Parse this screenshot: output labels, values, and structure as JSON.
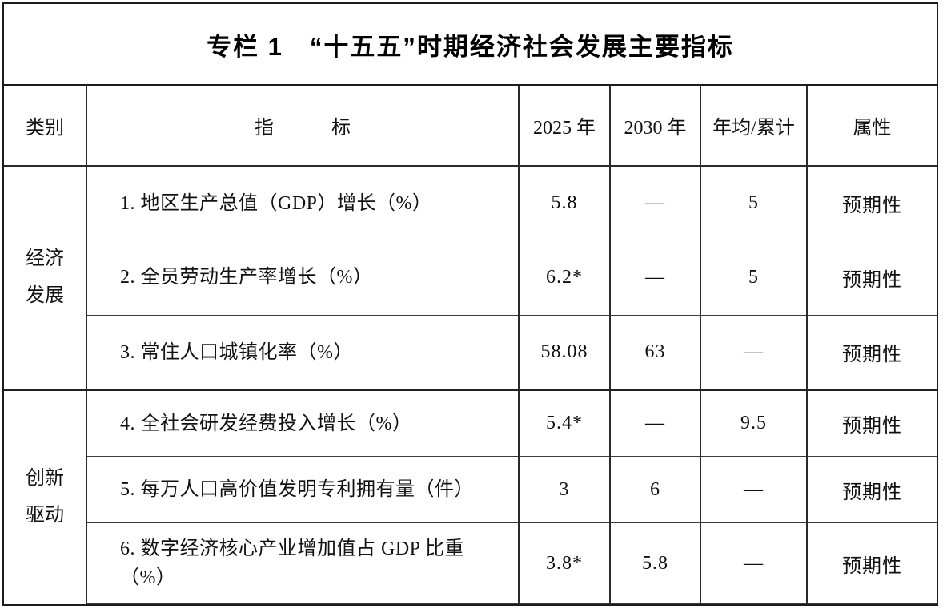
{
  "title": "专栏 1　“十五五”时期经济社会发展主要指标",
  "table": {
    "headers": {
      "category": "类别",
      "indicator": "指　　　标",
      "y2025": "2025 年",
      "y2030": "2030 年",
      "avg_cum": "年均/累计",
      "attribute": "属性"
    },
    "groups": [
      {
        "category": "经济发展",
        "rows": [
          {
            "indicator": "1. 地区生产总值（GDP）增长（%）",
            "y2025": "5.8",
            "y2030": "—",
            "avg_cum": "5",
            "attribute": "预期性"
          },
          {
            "indicator": "2. 全员劳动生产率增长（%）",
            "y2025": "6.2*",
            "y2030": "—",
            "avg_cum": "5",
            "attribute": "预期性"
          },
          {
            "indicator": "3. 常住人口城镇化率（%）",
            "y2025": "58.08",
            "y2030": "63",
            "avg_cum": "—",
            "attribute": "预期性"
          }
        ]
      },
      {
        "category": "创新驱动",
        "rows": [
          {
            "indicator": "4. 全社会研发经费投入增长（%）",
            "y2025": "5.4*",
            "y2030": "—",
            "avg_cum": "9.5",
            "attribute": "预期性"
          },
          {
            "indicator": "5. 每万人口高价值发明专利拥有量（件）",
            "y2025": "3",
            "y2030": "6",
            "avg_cum": "—",
            "attribute": "预期性"
          },
          {
            "indicator": "6. 数字经济核心产业增加值占 GDP 比重（%）",
            "y2025": "3.8*",
            "y2030": "5.8",
            "avg_cum": "—",
            "attribute": "预期性"
          }
        ]
      }
    ]
  }
}
